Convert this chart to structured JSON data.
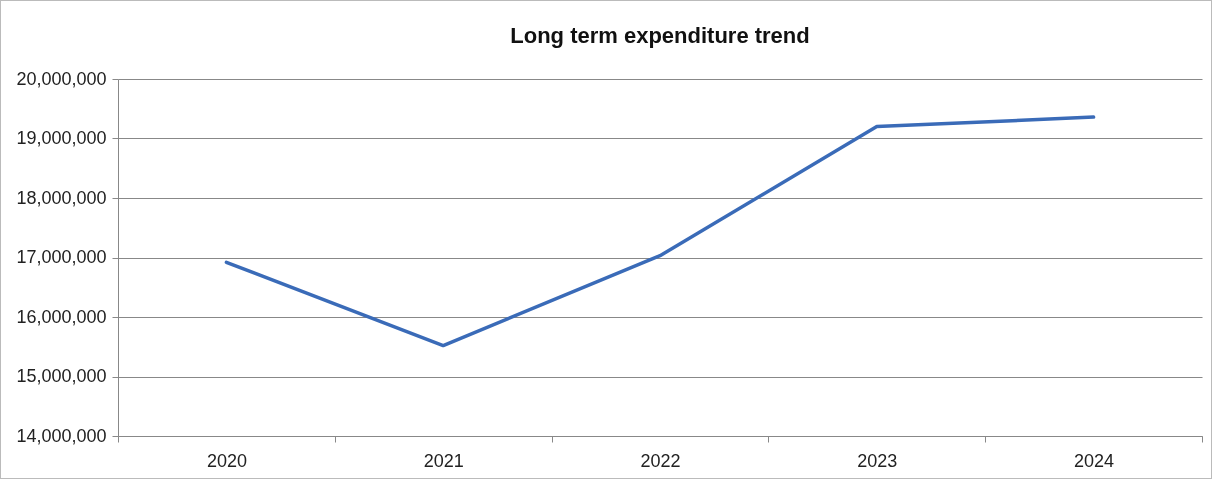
{
  "chart_data": {
    "type": "line",
    "title": "Long term expenditure trend",
    "categories": [
      "2020",
      "2021",
      "2022",
      "2023",
      "2024"
    ],
    "series": [
      {
        "color": "#3a6bb8",
        "values": [
          16920000,
          15520000,
          17030000,
          19200000,
          19360000
        ]
      }
    ],
    "ylim": [
      14000000,
      20000000
    ],
    "yticks": [
      {
        "value": 14000000,
        "label": "14,000,000"
      },
      {
        "value": 15000000,
        "label": "15,000,000"
      },
      {
        "value": 16000000,
        "label": "16,000,000"
      },
      {
        "value": 17000000,
        "label": "17,000,000"
      },
      {
        "value": 18000000,
        "label": "18,000,000"
      },
      {
        "value": 19000000,
        "label": "19,000,000"
      },
      {
        "value": 20000000,
        "label": "20,000,000"
      }
    ],
    "grid": "y",
    "marker": "none",
    "line_style": "solid"
  }
}
